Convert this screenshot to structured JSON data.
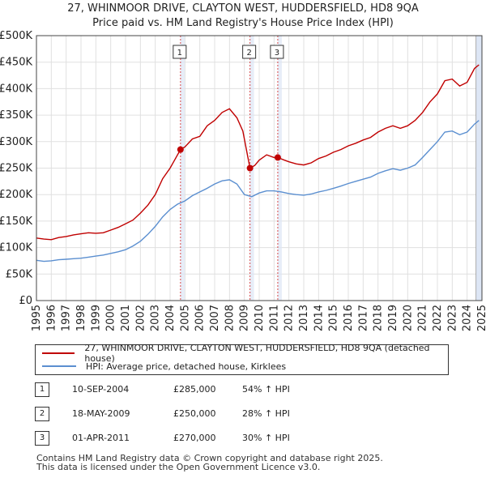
{
  "title_line1": "27, WHINMOOR DRIVE, CLAYTON WEST, HUDDERSFIELD, HD8 9QA",
  "title_line2": "Price paid vs. HM Land Registry's House Price Index (HPI)",
  "colors": {
    "property": "#c00000",
    "hpi": "#5b8fd0",
    "marker_line": "#cc0000",
    "shade": "#dde6f5",
    "grid": "#e0e0e0"
  },
  "chart_data": {
    "type": "line",
    "x_range": [
      1995,
      2025
    ],
    "ylim": [
      0,
      500000
    ],
    "y_ticks": [
      {
        "value": 0,
        "label": "£0"
      },
      {
        "value": 50000,
        "label": "£50K"
      },
      {
        "value": 100000,
        "label": "£100K"
      },
      {
        "value": 150000,
        "label": "£150K"
      },
      {
        "value": 200000,
        "label": "£200K"
      },
      {
        "value": 250000,
        "label": "£250K"
      },
      {
        "value": 300000,
        "label": "£300K"
      },
      {
        "value": 350000,
        "label": "£350K"
      },
      {
        "value": 400000,
        "label": "£400K"
      },
      {
        "value": 450000,
        "label": "£450K"
      },
      {
        "value": 500000,
        "label": "£500K"
      }
    ],
    "x_ticks": [
      "1995",
      "1996",
      "1997",
      "1998",
      "1999",
      "2000",
      "2001",
      "2002",
      "2003",
      "2004",
      "2005",
      "2006",
      "2007",
      "2008",
      "2009",
      "2010",
      "2011",
      "2012",
      "2013",
      "2014",
      "2015",
      "2016",
      "2017",
      "2018",
      "2019",
      "2020",
      "2021",
      "2022",
      "2023",
      "2024",
      "2025"
    ],
    "shaded_period": [
      2024.6,
      2025
    ],
    "series": [
      {
        "name": "27, WHINMOOR DRIVE, CLAYTON WEST, HUDDERSFIELD, HD8 9QA (detached house)",
        "points": [
          [
            1995,
            118000
          ],
          [
            1995.5,
            116000
          ],
          [
            1996,
            115000
          ],
          [
            1996.5,
            119000
          ],
          [
            1997,
            121000
          ],
          [
            1997.5,
            124000
          ],
          [
            1998,
            126000
          ],
          [
            1998.5,
            128000
          ],
          [
            1999,
            127000
          ],
          [
            1999.5,
            128000
          ],
          [
            2000,
            133000
          ],
          [
            2000.5,
            138000
          ],
          [
            2001,
            145000
          ],
          [
            2001.5,
            152000
          ],
          [
            2002,
            165000
          ],
          [
            2002.5,
            180000
          ],
          [
            2003,
            200000
          ],
          [
            2003.5,
            230000
          ],
          [
            2004,
            250000
          ],
          [
            2004.3,
            265000
          ],
          [
            2004.7,
            285000
          ],
          [
            2005,
            290000
          ],
          [
            2005.5,
            305000
          ],
          [
            2006,
            310000
          ],
          [
            2006.5,
            330000
          ],
          [
            2007,
            340000
          ],
          [
            2007.5,
            355000
          ],
          [
            2008,
            362000
          ],
          [
            2008.5,
            345000
          ],
          [
            2008.9,
            320000
          ],
          [
            2009.38,
            250000
          ],
          [
            2009.7,
            255000
          ],
          [
            2010,
            265000
          ],
          [
            2010.5,
            275000
          ],
          [
            2011,
            270000
          ],
          [
            2011.25,
            270000
          ],
          [
            2011.7,
            265000
          ],
          [
            2012,
            262000
          ],
          [
            2012.5,
            258000
          ],
          [
            2013,
            256000
          ],
          [
            2013.5,
            260000
          ],
          [
            2014,
            268000
          ],
          [
            2014.5,
            273000
          ],
          [
            2015,
            280000
          ],
          [
            2015.5,
            285000
          ],
          [
            2016,
            292000
          ],
          [
            2016.5,
            297000
          ],
          [
            2017,
            303000
          ],
          [
            2017.5,
            308000
          ],
          [
            2018,
            318000
          ],
          [
            2018.5,
            325000
          ],
          [
            2019,
            330000
          ],
          [
            2019.5,
            325000
          ],
          [
            2020,
            330000
          ],
          [
            2020.5,
            340000
          ],
          [
            2021,
            355000
          ],
          [
            2021.5,
            375000
          ],
          [
            2022,
            390000
          ],
          [
            2022.5,
            415000
          ],
          [
            2023,
            418000
          ],
          [
            2023.5,
            405000
          ],
          [
            2024,
            412000
          ],
          [
            2024.5,
            438000
          ],
          [
            2024.8,
            445000
          ]
        ]
      },
      {
        "name": "HPI: Average price, detached house, Kirklees",
        "points": [
          [
            1995,
            76000
          ],
          [
            1995.5,
            74000
          ],
          [
            1996,
            75000
          ],
          [
            1996.5,
            77000
          ],
          [
            1997,
            78000
          ],
          [
            1997.5,
            79000
          ],
          [
            1998,
            80000
          ],
          [
            1998.5,
            82000
          ],
          [
            1999,
            84000
          ],
          [
            1999.5,
            86000
          ],
          [
            2000,
            89000
          ],
          [
            2000.5,
            92000
          ],
          [
            2001,
            96000
          ],
          [
            2001.5,
            103000
          ],
          [
            2002,
            112000
          ],
          [
            2002.5,
            125000
          ],
          [
            2003,
            140000
          ],
          [
            2003.5,
            158000
          ],
          [
            2004,
            172000
          ],
          [
            2004.5,
            182000
          ],
          [
            2005,
            188000
          ],
          [
            2005.5,
            198000
          ],
          [
            2006,
            205000
          ],
          [
            2006.5,
            212000
          ],
          [
            2007,
            220000
          ],
          [
            2007.5,
            226000
          ],
          [
            2008,
            228000
          ],
          [
            2008.5,
            220000
          ],
          [
            2009,
            200000
          ],
          [
            2009.5,
            196000
          ],
          [
            2010,
            203000
          ],
          [
            2010.5,
            207000
          ],
          [
            2011,
            207000
          ],
          [
            2011.5,
            205000
          ],
          [
            2012,
            202000
          ],
          [
            2012.5,
            200000
          ],
          [
            2013,
            199000
          ],
          [
            2013.5,
            201000
          ],
          [
            2014,
            205000
          ],
          [
            2014.5,
            208000
          ],
          [
            2015,
            212000
          ],
          [
            2015.5,
            216000
          ],
          [
            2016,
            221000
          ],
          [
            2016.5,
            225000
          ],
          [
            2017,
            229000
          ],
          [
            2017.5,
            233000
          ],
          [
            2018,
            240000
          ],
          [
            2018.5,
            245000
          ],
          [
            2019,
            249000
          ],
          [
            2019.5,
            246000
          ],
          [
            2020,
            250000
          ],
          [
            2020.5,
            256000
          ],
          [
            2021,
            270000
          ],
          [
            2021.5,
            285000
          ],
          [
            2022,
            300000
          ],
          [
            2022.5,
            318000
          ],
          [
            2023,
            320000
          ],
          [
            2023.5,
            313000
          ],
          [
            2024,
            318000
          ],
          [
            2024.5,
            333000
          ],
          [
            2024.8,
            340000
          ]
        ]
      }
    ],
    "transactions": [
      {
        "id": "1",
        "x": 2004.7,
        "price": 285000
      },
      {
        "id": "2",
        "x": 2009.38,
        "price": 250000
      },
      {
        "id": "3",
        "x": 2011.25,
        "price": 270000
      }
    ]
  },
  "legend": [
    {
      "label": "27, WHINMOOR DRIVE, CLAYTON WEST, HUDDERSFIELD, HD8 9QA (detached house)"
    },
    {
      "label": "HPI: Average price, detached house, Kirklees"
    }
  ],
  "table": [
    {
      "num": "1",
      "date": "10-SEP-2004",
      "price": "£285,000",
      "hpi": "54% ↑ HPI"
    },
    {
      "num": "2",
      "date": "18-MAY-2009",
      "price": "£250,000",
      "hpi": "28% ↑ HPI"
    },
    {
      "num": "3",
      "date": "01-APR-2011",
      "price": "£270,000",
      "hpi": "30% ↑ HPI"
    }
  ],
  "footer_line1": "Contains HM Land Registry data © Crown copyright and database right 2025.",
  "footer_line2": "This data is licensed under the Open Government Licence v3.0."
}
